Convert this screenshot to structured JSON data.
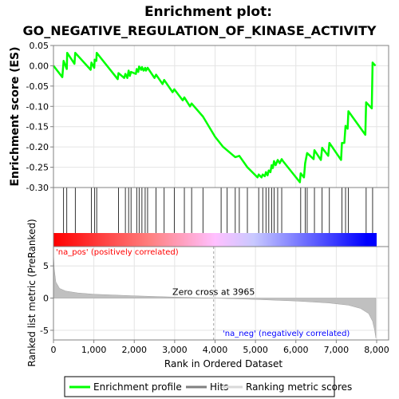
{
  "chart_data": {
    "type": "line",
    "title_line1": "Enrichment plot:",
    "title_line2": "GO_NEGATIVE_REGULATION_OF_KINASE_ACTIVITY",
    "es_panel": {
      "ylabel": "Enrichment score (ES)",
      "ylim": [
        -0.3,
        0.05
      ],
      "yticks": [
        "0.05",
        "0.00",
        "-0.05",
        "-0.10",
        "-0.15",
        "-0.20",
        "-0.25",
        "-0.30"
      ],
      "ytick_values": [
        0.05,
        0.0,
        -0.05,
        -0.1,
        -0.15,
        -0.2,
        -0.25,
        -0.3
      ],
      "series_name": "Enrichment profile",
      "color": "#00ff00",
      "x": [
        0,
        220,
        250,
        330,
        340,
        520,
        540,
        920,
        940,
        1010,
        1020,
        1060,
        1070,
        1590,
        1610,
        1750,
        1780,
        1830,
        1860,
        1890,
        1920,
        2040,
        2060,
        2100,
        2120,
        2170,
        2190,
        2230,
        2270,
        2290,
        2330,
        2500,
        2540,
        2700,
        2740,
        2950,
        2990,
        3200,
        3240,
        3380,
        3420,
        3700,
        4000,
        4200,
        4500,
        4600,
        4800,
        5050,
        5080,
        5150,
        5180,
        5230,
        5260,
        5300,
        5330,
        5370,
        5400,
        5430,
        5460,
        5500,
        5550,
        5600,
        5650,
        5680,
        6100,
        6120,
        6200,
        6230,
        6250,
        6280,
        6440,
        6460,
        6620,
        6650,
        6800,
        6830,
        7120,
        7140,
        7200,
        7230,
        7280,
        7300,
        7720,
        7740,
        7880,
        7900,
        7970
      ],
      "y": [
        0.0,
        -0.028,
        0.012,
        -0.008,
        0.032,
        0.005,
        0.032,
        -0.01,
        0.008,
        -0.005,
        0.015,
        0.012,
        0.032,
        -0.033,
        -0.018,
        -0.03,
        -0.02,
        -0.03,
        -0.012,
        -0.025,
        -0.015,
        -0.02,
        -0.008,
        -0.015,
        -0.002,
        -0.01,
        -0.003,
        -0.012,
        -0.005,
        -0.012,
        -0.005,
        -0.03,
        -0.022,
        -0.045,
        -0.035,
        -0.065,
        -0.058,
        -0.085,
        -0.078,
        -0.1,
        -0.093,
        -0.125,
        -0.175,
        -0.2,
        -0.225,
        -0.222,
        -0.25,
        -0.275,
        -0.268,
        -0.275,
        -0.268,
        -0.272,
        -0.262,
        -0.27,
        -0.258,
        -0.262,
        -0.245,
        -0.252,
        -0.235,
        -0.245,
        -0.232,
        -0.24,
        -0.23,
        -0.235,
        -0.287,
        -0.265,
        -0.275,
        -0.24,
        -0.23,
        -0.215,
        -0.23,
        -0.208,
        -0.232,
        -0.202,
        -0.222,
        -0.19,
        -0.232,
        -0.19,
        -0.19,
        -0.148,
        -0.155,
        -0.112,
        -0.17,
        -0.09,
        -0.105,
        0.008,
        0.0
      ]
    },
    "hits_panel": {
      "series_name": "Hits",
      "hit_positions": [
        250,
        330,
        540,
        940,
        1020,
        1070,
        1610,
        1780,
        1860,
        1920,
        2060,
        2120,
        2190,
        2270,
        2330,
        2540,
        2740,
        2990,
        3240,
        3420,
        3700,
        4150,
        4300,
        4500,
        4600,
        4800,
        5080,
        5180,
        5260,
        5330,
        5400,
        5460,
        5550,
        5650,
        6120,
        6230,
        6280,
        6460,
        6650,
        6830,
        7140,
        7230,
        7300,
        7740,
        7900
      ],
      "gradient_colors": [
        "#ff0000",
        "#ff8080",
        "#ffc0ff",
        "#c8c8ff",
        "#0000ff"
      ]
    },
    "metric_panel": {
      "ylabel": "Ranked list metric (PreRanked)",
      "ylim": [
        -6.5,
        8.0
      ],
      "yticks": [
        "5",
        "0",
        "-5"
      ],
      "ytick_values": [
        5,
        0,
        -5
      ],
      "series_name": "Ranking metric scores",
      "zero_cross_label": "Zero cross at 3965",
      "zero_cross": 3965,
      "pos_label": "'na_pos' (positively correlated)",
      "neg_label": "'na_neg' (negatively correlated)",
      "pos_color": "#ff0000",
      "neg_color": "#0000ff",
      "curve_x": [
        0,
        20,
        60,
        150,
        300,
        600,
        1000,
        2000,
        3000,
        3965,
        5000,
        6000,
        6800,
        7300,
        7600,
        7800,
        7900,
        7950,
        7980
      ],
      "curve_y": [
        7.0,
        4.5,
        2.5,
        1.5,
        1.1,
        0.8,
        0.6,
        0.35,
        0.15,
        0.0,
        -0.2,
        -0.45,
        -0.75,
        -1.1,
        -1.6,
        -2.4,
        -3.6,
        -5.0,
        -6.2
      ]
    },
    "xaxis": {
      "xlabel": "Rank in Ordered Dataset",
      "xlim": [
        0,
        8000
      ],
      "xticks": [
        "0",
        "1,000",
        "2,000",
        "3,000",
        "4,000",
        "5,000",
        "6,000",
        "7,000",
        "8,000"
      ],
      "xtick_values": [
        0,
        1000,
        2000,
        3000,
        4000,
        5000,
        6000,
        7000,
        8000
      ]
    },
    "legend": {
      "placement": "bottom",
      "entries": [
        "Enrichment profile",
        "Hits",
        "Ranking metric scores"
      ]
    }
  }
}
